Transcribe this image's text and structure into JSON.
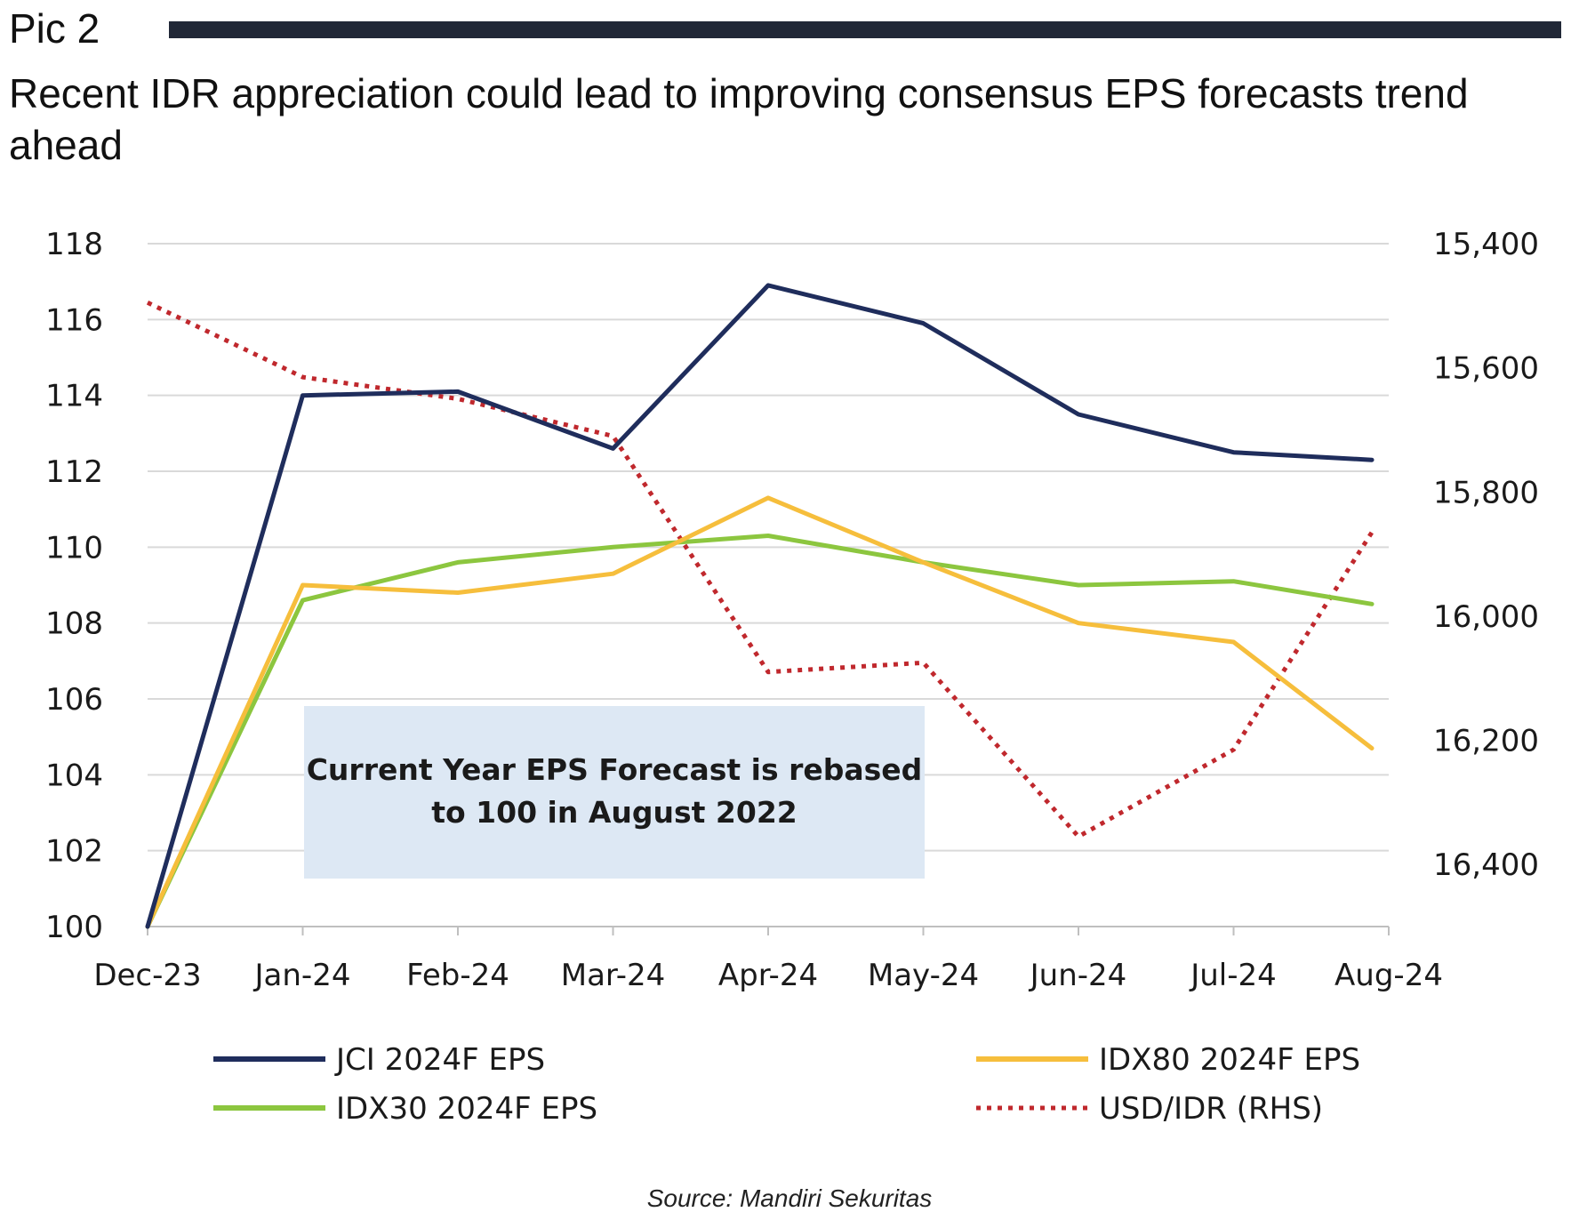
{
  "header": {
    "pic_label": "Pic 2",
    "title": "Recent IDR appreciation could lead to improving consensus EPS forecasts trend ahead"
  },
  "chart_data": {
    "type": "line",
    "x": [
      "Dec-23",
      "Jan-24",
      "Feb-24",
      "Mar-24",
      "Apr-24",
      "May-24",
      "Jun-24",
      "Jul-24",
      "Aug-24"
    ],
    "left_axis": {
      "ticks": [
        100,
        102,
        104,
        106,
        108,
        110,
        112,
        114,
        116,
        118
      ],
      "ylim": [
        100,
        118
      ]
    },
    "right_axis": {
      "ticks": [
        "15,400",
        "15,600",
        "15,800",
        "16,000",
        "16,200",
        "16,400"
      ],
      "ylim": [
        15400,
        16500
      ],
      "inverted": true
    },
    "grid": true,
    "series": [
      {
        "name": "JCI 2024F EPS",
        "axis": "left",
        "color": "#1f2d5c",
        "style": "solid",
        "values": [
          100,
          114.0,
          114.1,
          112.6,
          116.9,
          115.9,
          113.5,
          112.5,
          112.3
        ]
      },
      {
        "name": "IDX80 2024F EPS",
        "axis": "left",
        "color": "#f6be3c",
        "style": "solid",
        "values": [
          100,
          109.0,
          108.8,
          109.3,
          111.3,
          109.6,
          108.0,
          107.5,
          104.7
        ]
      },
      {
        "name": "IDX30 2024F EPS",
        "axis": "left",
        "color": "#8cc63f",
        "style": "solid",
        "values": [
          100,
          108.6,
          109.6,
          110.0,
          110.3,
          109.6,
          109.0,
          109.1,
          108.5
        ]
      },
      {
        "name": "USD/IDR (RHS)",
        "axis": "right",
        "color": "#c0282d",
        "style": "dotted",
        "values": [
          15495,
          15615,
          15650,
          15710,
          16090,
          16075,
          16355,
          16215,
          15865
        ]
      }
    ],
    "annotation": "Current Year EPS Forecast is rebased to 100 in August 2022",
    "legend_position": "bottom"
  },
  "source": "Source: Mandiri Sekuritas"
}
